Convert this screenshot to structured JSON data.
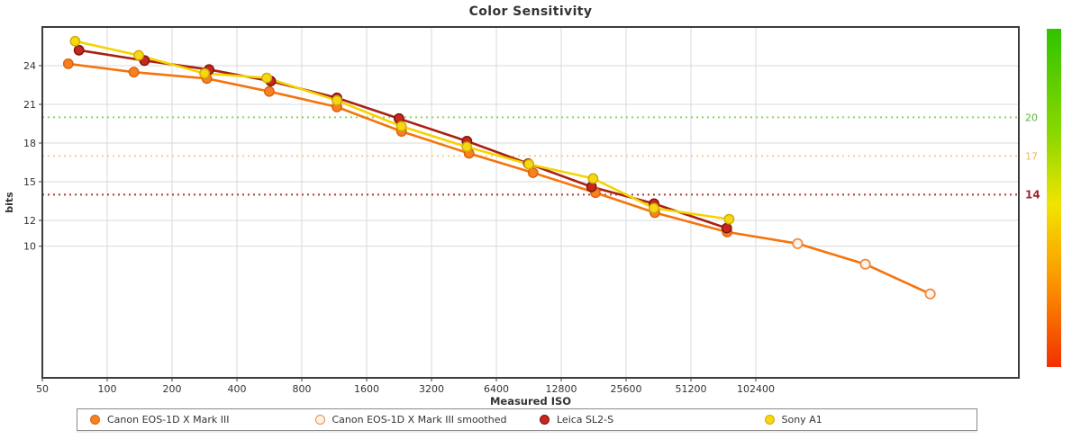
{
  "title": "Color Sensitivity",
  "axes": {
    "x_label": "Measured ISO",
    "y_label": "bits",
    "y_ticks": [
      24,
      21,
      18,
      15,
      12,
      10
    ],
    "x_ticks": [
      50,
      100,
      200,
      400,
      800,
      1600,
      3200,
      6400,
      12800,
      25600,
      51200,
      102400
    ]
  },
  "thresholds": [
    {
      "label": "20",
      "value": 20,
      "label_color": "#5cb33c",
      "line_color": "#8ad463",
      "bold": false
    },
    {
      "label": "17",
      "value": 17,
      "label_color": "#efb95e",
      "line_color": "#f7cd85",
      "bold": false
    },
    {
      "label": "14",
      "value": 14,
      "label_color": "#a32330",
      "line_color": "#ad3a3a",
      "bold": true
    }
  ],
  "gradient_bar": {
    "stops": [
      "#2fc400 0%",
      "#8ed800 32%",
      "#f2e400 52%",
      "#fb9100 76%",
      "#f23000 100%"
    ]
  },
  "chart_data": {
    "type": "line",
    "title": "Color Sensitivity",
    "xlabel": "Measured ISO",
    "ylabel": "bits",
    "x_scale": "log2",
    "x_range": [
      50,
      1640000
    ],
    "y_range": [
      0,
      27
    ],
    "grid": true,
    "legend_position": "bottom",
    "series": [
      {
        "name": "Canon EOS-1D X Mark III",
        "marker": "filled",
        "line_color": "#f4740e",
        "dot_fill": "#f58220",
        "dot_ring": "#dd5f10",
        "points": [
          [
            66,
            24.15
          ],
          [
            133,
            23.5
          ],
          [
            290,
            23.0
          ],
          [
            565,
            22.0
          ],
          [
            1165,
            20.8
          ],
          [
            2325,
            18.9
          ],
          [
            4780,
            17.2
          ],
          [
            9470,
            15.7
          ],
          [
            18450,
            14.15
          ],
          [
            34800,
            12.6
          ],
          [
            75400,
            11.1
          ]
        ]
      },
      {
        "name": "Canon EOS-1D X Mark III smoothed",
        "marker": "open",
        "skip_first_marker": true,
        "line_color": "#f4740e",
        "dot_fill": "#fdf3e7",
        "dot_ring": "#f08a45",
        "points": [
          [
            75400,
            11.1
          ],
          [
            160000,
            10.2
          ],
          [
            330000,
            8.6
          ],
          [
            660000,
            6.3
          ]
        ]
      },
      {
        "name": "Leica SL2-S",
        "marker": "filled",
        "line_color": "#a92013",
        "dot_fill": "#c5281c",
        "dot_ring": "#7d130a",
        "points": [
          [
            74,
            25.2
          ],
          [
            149,
            24.4
          ],
          [
            297,
            23.7
          ],
          [
            574,
            22.8
          ],
          [
            1165,
            21.5
          ],
          [
            2260,
            19.9
          ],
          [
            4670,
            18.15
          ],
          [
            9000,
            16.4
          ],
          [
            17700,
            14.6
          ],
          [
            34500,
            13.3
          ],
          [
            75000,
            11.4
          ]
        ]
      },
      {
        "name": "Sony A1",
        "marker": "filled",
        "line_color": "#f4d400",
        "dot_fill": "#f6d810",
        "dot_ring": "#cfa90a",
        "points": [
          [
            71,
            25.9
          ],
          [
            140,
            24.8
          ],
          [
            283,
            23.4
          ],
          [
            550,
            23.05
          ],
          [
            1165,
            21.3
          ],
          [
            2320,
            19.3
          ],
          [
            4670,
            17.7
          ],
          [
            9070,
            16.35
          ],
          [
            18000,
            15.25
          ],
          [
            34500,
            12.95
          ],
          [
            77000,
            12.1
          ]
        ]
      }
    ]
  }
}
